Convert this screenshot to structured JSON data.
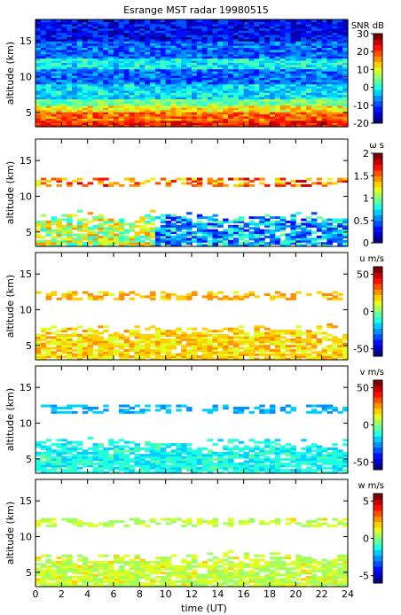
{
  "figure": {
    "title": "Esrange MST radar 19980515",
    "xlabel": "time (UT)"
  },
  "colormap": [
    "#00007f",
    "#0000c8",
    "#0010ff",
    "#0050ff",
    "#0090ff",
    "#00d0ff",
    "#20ffdf",
    "#60ff9f",
    "#a0ff5f",
    "#dfff20",
    "#ffd000",
    "#ff9000",
    "#ff5000",
    "#ff1000",
    "#c80000",
    "#7f0000"
  ],
  "chart_data": [
    {
      "type": "heatmap",
      "panel": "snr",
      "ylabel": "altitude (km)",
      "colorbar_label": "SNR dB",
      "x": {
        "range": [
          0,
          24
        ],
        "ticks": [
          0,
          2,
          4,
          6,
          8,
          10,
          12,
          14,
          16,
          18,
          20,
          22,
          24
        ]
      },
      "y": {
        "range": [
          3,
          18
        ],
        "ticks": [
          5,
          10,
          15
        ]
      },
      "clim": [
        -20,
        30
      ],
      "colorbar_ticks": [
        -20,
        -10,
        0,
        10,
        20,
        30
      ],
      "description_profile": [
        {
          "altitude_km": 3.5,
          "value": 22
        },
        {
          "altitude_km": 4.5,
          "value": 20
        },
        {
          "altitude_km": 5.5,
          "value": 12
        },
        {
          "altitude_km": 6.5,
          "value": 5
        },
        {
          "altitude_km": 8,
          "value": -2
        },
        {
          "altitude_km": 10,
          "value": -8
        },
        {
          "altitude_km": 12,
          "value": 0
        },
        {
          "altitude_km": 14,
          "value": -8
        },
        {
          "altitude_km": 17,
          "value": -14
        }
      ]
    },
    {
      "type": "heatmap",
      "panel": "width",
      "ylabel": "altitude (km)",
      "colorbar_label": "ω s",
      "x": {
        "range": [
          0,
          24
        ],
        "ticks": [
          0,
          2,
          4,
          6,
          8,
          10,
          12,
          14,
          16,
          18,
          20,
          22,
          24
        ]
      },
      "y": {
        "range": [
          3,
          18
        ],
        "ticks": [
          5,
          10,
          15
        ]
      },
      "clim": [
        0,
        2
      ],
      "colorbar_ticks": [
        0,
        0.5,
        1,
        1.5,
        2
      ],
      "description_profile": [
        {
          "altitude_km": 5,
          "value_before_9UT": 1.2,
          "value_after_9UT": 0.6
        },
        {
          "altitude_km": 12,
          "value": 1.6
        }
      ]
    },
    {
      "type": "heatmap",
      "panel": "u",
      "ylabel": "altitude (km)",
      "colorbar_label": "u m/s",
      "x": {
        "range": [
          0,
          24
        ],
        "ticks": [
          0,
          2,
          4,
          6,
          8,
          10,
          12,
          14,
          16,
          18,
          20,
          22,
          24
        ]
      },
      "y": {
        "range": [
          3,
          18
        ],
        "ticks": [
          5,
          10,
          15
        ]
      },
      "clim": [
        -60,
        60
      ],
      "colorbar_ticks": [
        -50,
        0,
        50
      ],
      "description_profile": [
        {
          "altitude_km": 5,
          "value": 20
        },
        {
          "altitude_km": 12,
          "value": 22
        }
      ]
    },
    {
      "type": "heatmap",
      "panel": "v",
      "ylabel": "altitude (km)",
      "colorbar_label": "v m/s",
      "x": {
        "range": [
          0,
          24
        ],
        "ticks": [
          0,
          2,
          4,
          6,
          8,
          10,
          12,
          14,
          16,
          18,
          20,
          22,
          24
        ]
      },
      "y": {
        "range": [
          3,
          18
        ],
        "ticks": [
          5,
          10,
          15
        ]
      },
      "clim": [
        -60,
        60
      ],
      "colorbar_ticks": [
        -50,
        0,
        50
      ],
      "description_profile": [
        {
          "altitude_km": 5,
          "value": -12
        },
        {
          "altitude_km": 12,
          "value": -22
        }
      ]
    },
    {
      "type": "heatmap",
      "panel": "w",
      "ylabel": "altitude (km)",
      "colorbar_label": "w m/s",
      "x": {
        "range": [
          0,
          24
        ],
        "ticks": [
          0,
          2,
          4,
          6,
          8,
          10,
          12,
          14,
          16,
          18,
          20,
          22,
          24
        ]
      },
      "y": {
        "range": [
          3,
          18
        ],
        "ticks": [
          5,
          10,
          15
        ]
      },
      "clim": [
        -6,
        6
      ],
      "colorbar_ticks": [
        -5,
        0,
        5
      ],
      "description_profile": [
        {
          "altitude_km": 5,
          "value": 0.8
        },
        {
          "altitude_km": 12,
          "value": 0.5
        }
      ]
    }
  ]
}
